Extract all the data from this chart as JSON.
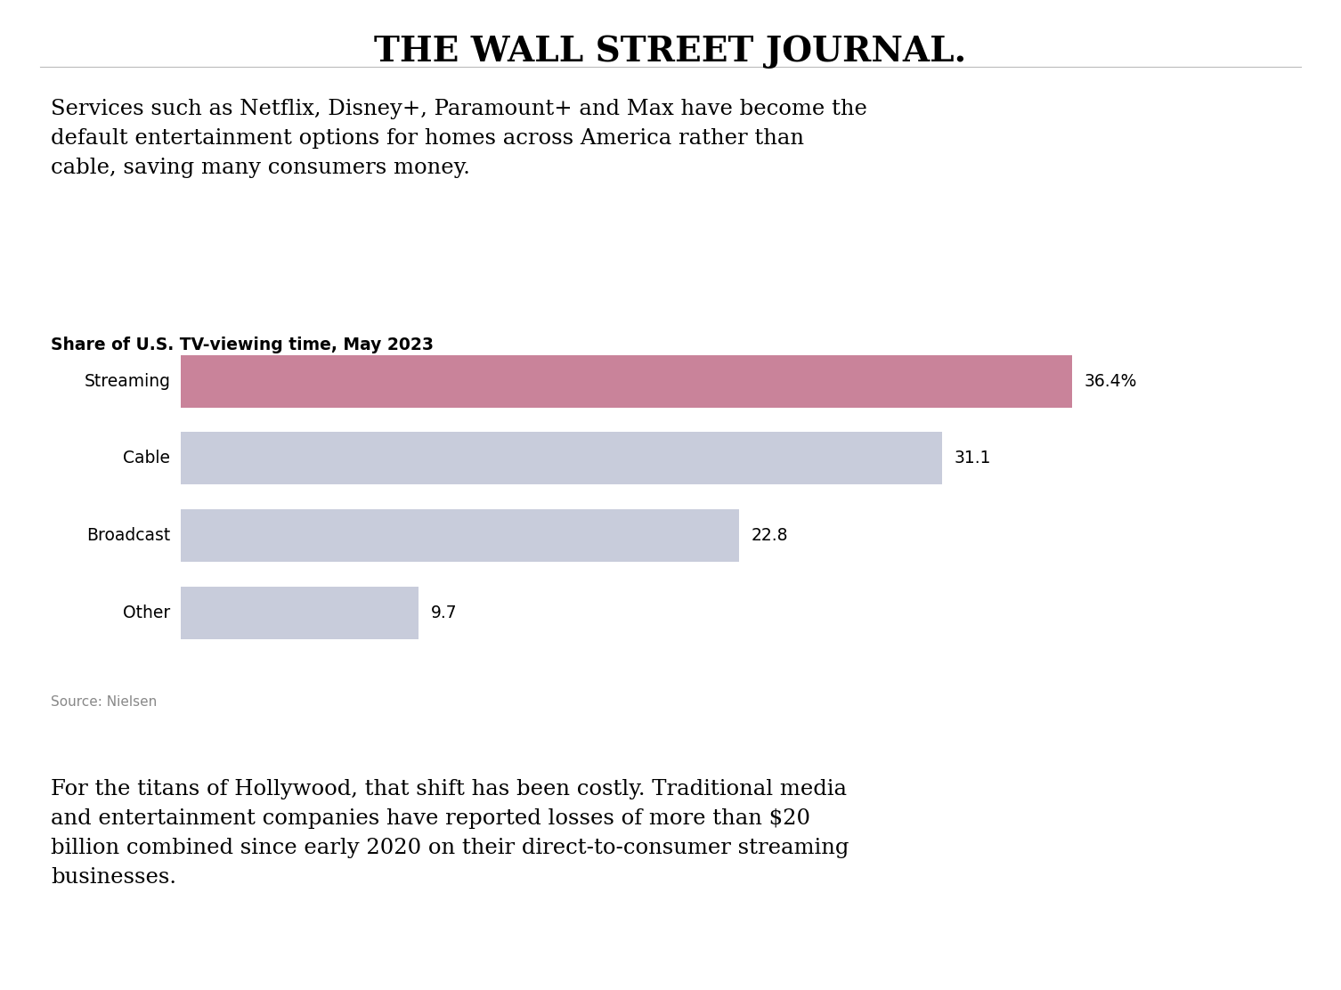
{
  "wsj_title": "THE WALL STREET JOURNAL.",
  "intro_text": "Services such as Netflix, Disney+, Paramount+ and Max have become the\ndefault entertainment options for homes across America rather than\ncable, saving many consumers money.",
  "chart_title": "Share of U.S. TV-viewing time, May 2023",
  "categories": [
    "Streaming",
    "Cable",
    "Broadcast",
    "Other"
  ],
  "values": [
    36.4,
    31.1,
    22.8,
    9.7
  ],
  "labels": [
    "36.4%",
    "31.1",
    "22.8",
    "9.7"
  ],
  "bar_colors": [
    "#C9839A",
    "#C8CCDB",
    "#C8CCDB",
    "#C8CCDB"
  ],
  "source_text": "Source: Nielsen",
  "outro_text": "For the titans of Hollywood, that shift has been costly. Traditional media\nand entertainment companies have reported losses of more than $20\nbillion combined since early 2020 on their direct-to-consumer streaming\nbusinesses.",
  "background_color": "#FFFFFF",
  "text_color": "#000000",
  "source_color": "#888888",
  "bar_max": 40
}
